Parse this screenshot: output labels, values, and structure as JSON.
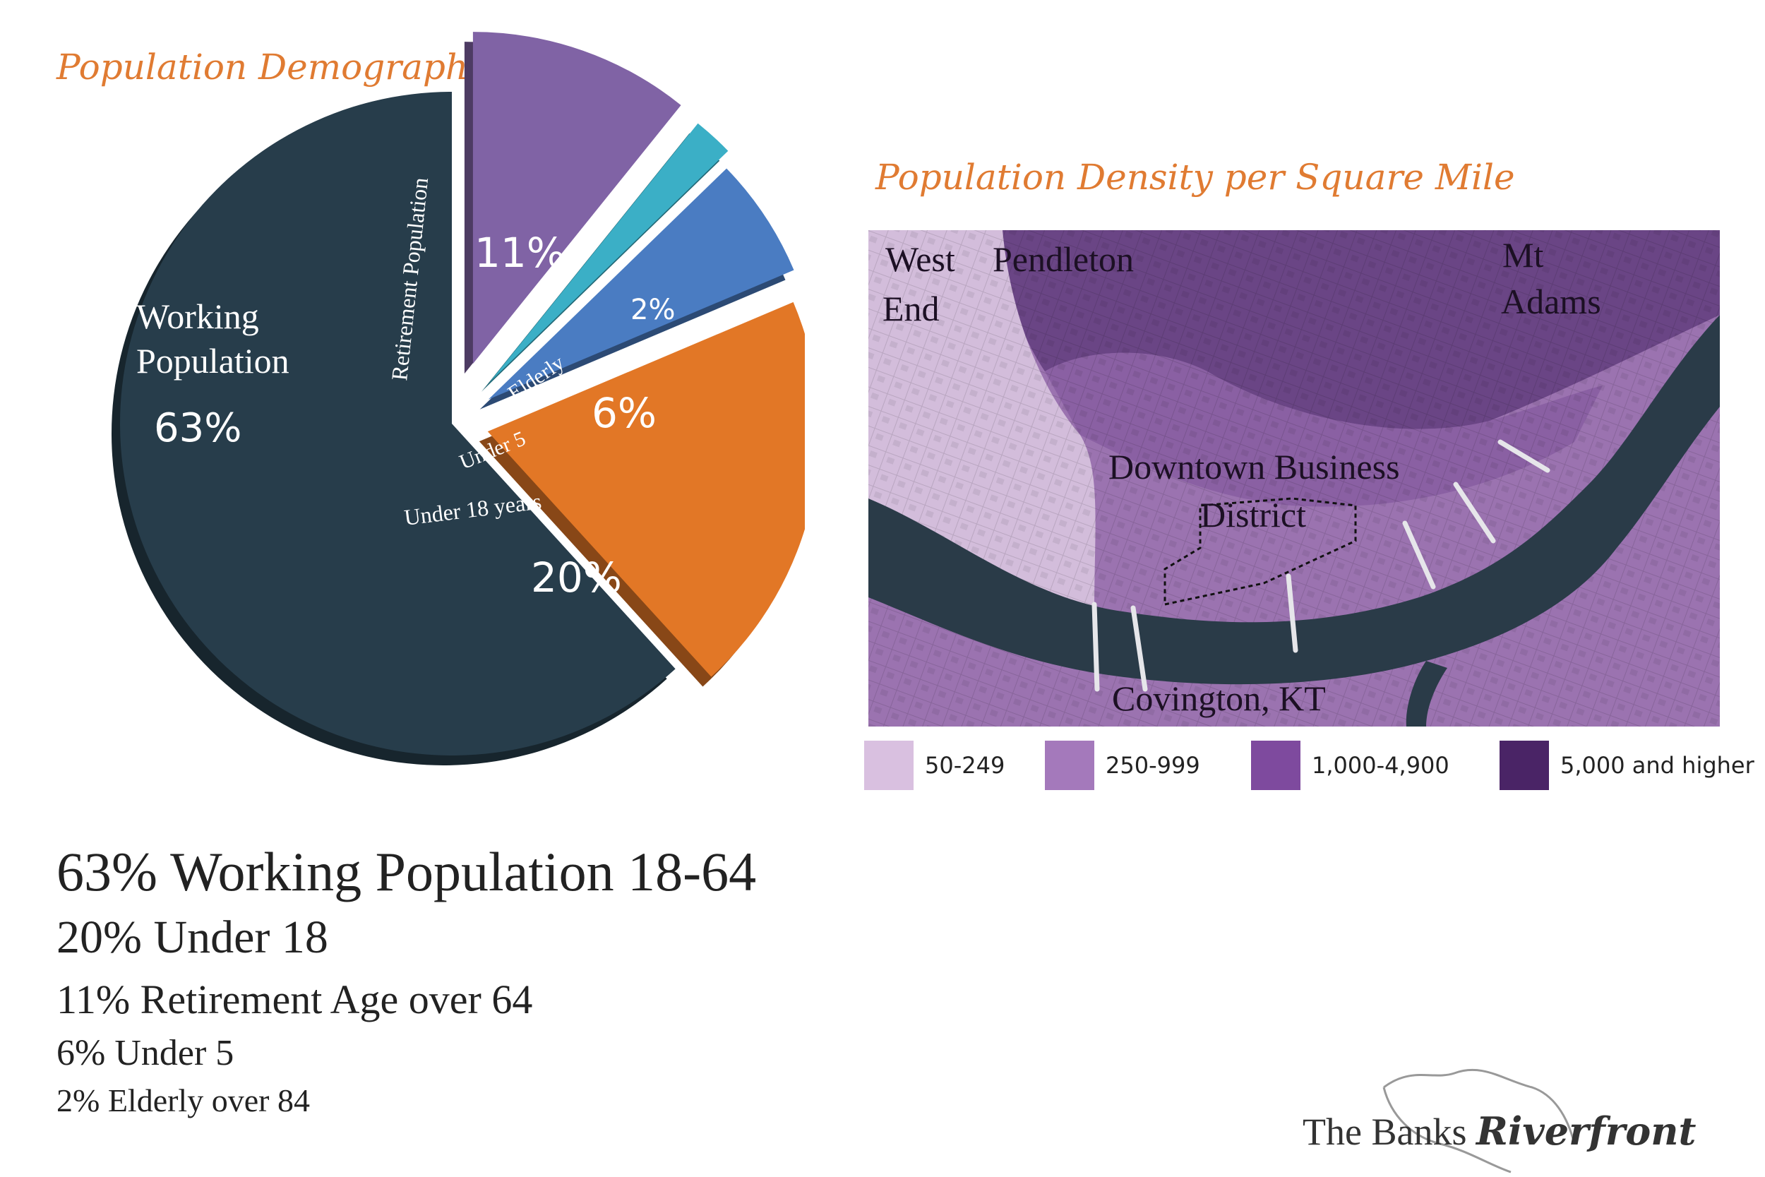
{
  "demographics": {
    "title": "Population Demographics"
  },
  "chart_data": {
    "type": "pie",
    "title": "Population Demographics",
    "slices": [
      {
        "label": "Working Population",
        "value": 63,
        "display": "63%",
        "color": "#273d4b"
      },
      {
        "label": "Retirement Population",
        "value": 11,
        "display": "11%",
        "color": "#8063a5"
      },
      {
        "label": "Elderly",
        "value": 2,
        "display": "2%",
        "color": "#3bafc6"
      },
      {
        "label": "Under 5",
        "value": 6,
        "display": "6%",
        "color": "#4a7cc2"
      },
      {
        "label": "Under 18 years",
        "value": 20,
        "display": "20%",
        "color": "#e27726"
      }
    ]
  },
  "summary": [
    "63% Working Population 18-64",
    "20% Under 18",
    "11% Retirement Age over 64",
    "6% Under 5",
    "2% Elderly over 84"
  ],
  "density": {
    "title": "Population Density per Square Mile",
    "places": {
      "west": "West",
      "end": "End",
      "pendleton": "Pendleton",
      "mt": "Mt",
      "adams": "Adams",
      "downtown": "Downtown Business",
      "district": "District",
      "covington": "Covington, KT"
    },
    "legend": [
      {
        "label": "50-249",
        "color": "#d9c0e0"
      },
      {
        "label": "250-999",
        "color": "#a479bb"
      },
      {
        "label": "1,000-4,900",
        "color": "#7e4a9e"
      },
      {
        "label": "5,000 and higher",
        "color": "#4a2466"
      }
    ]
  },
  "brand": {
    "name": "The Banks",
    "emphasis": "Riverfront"
  }
}
